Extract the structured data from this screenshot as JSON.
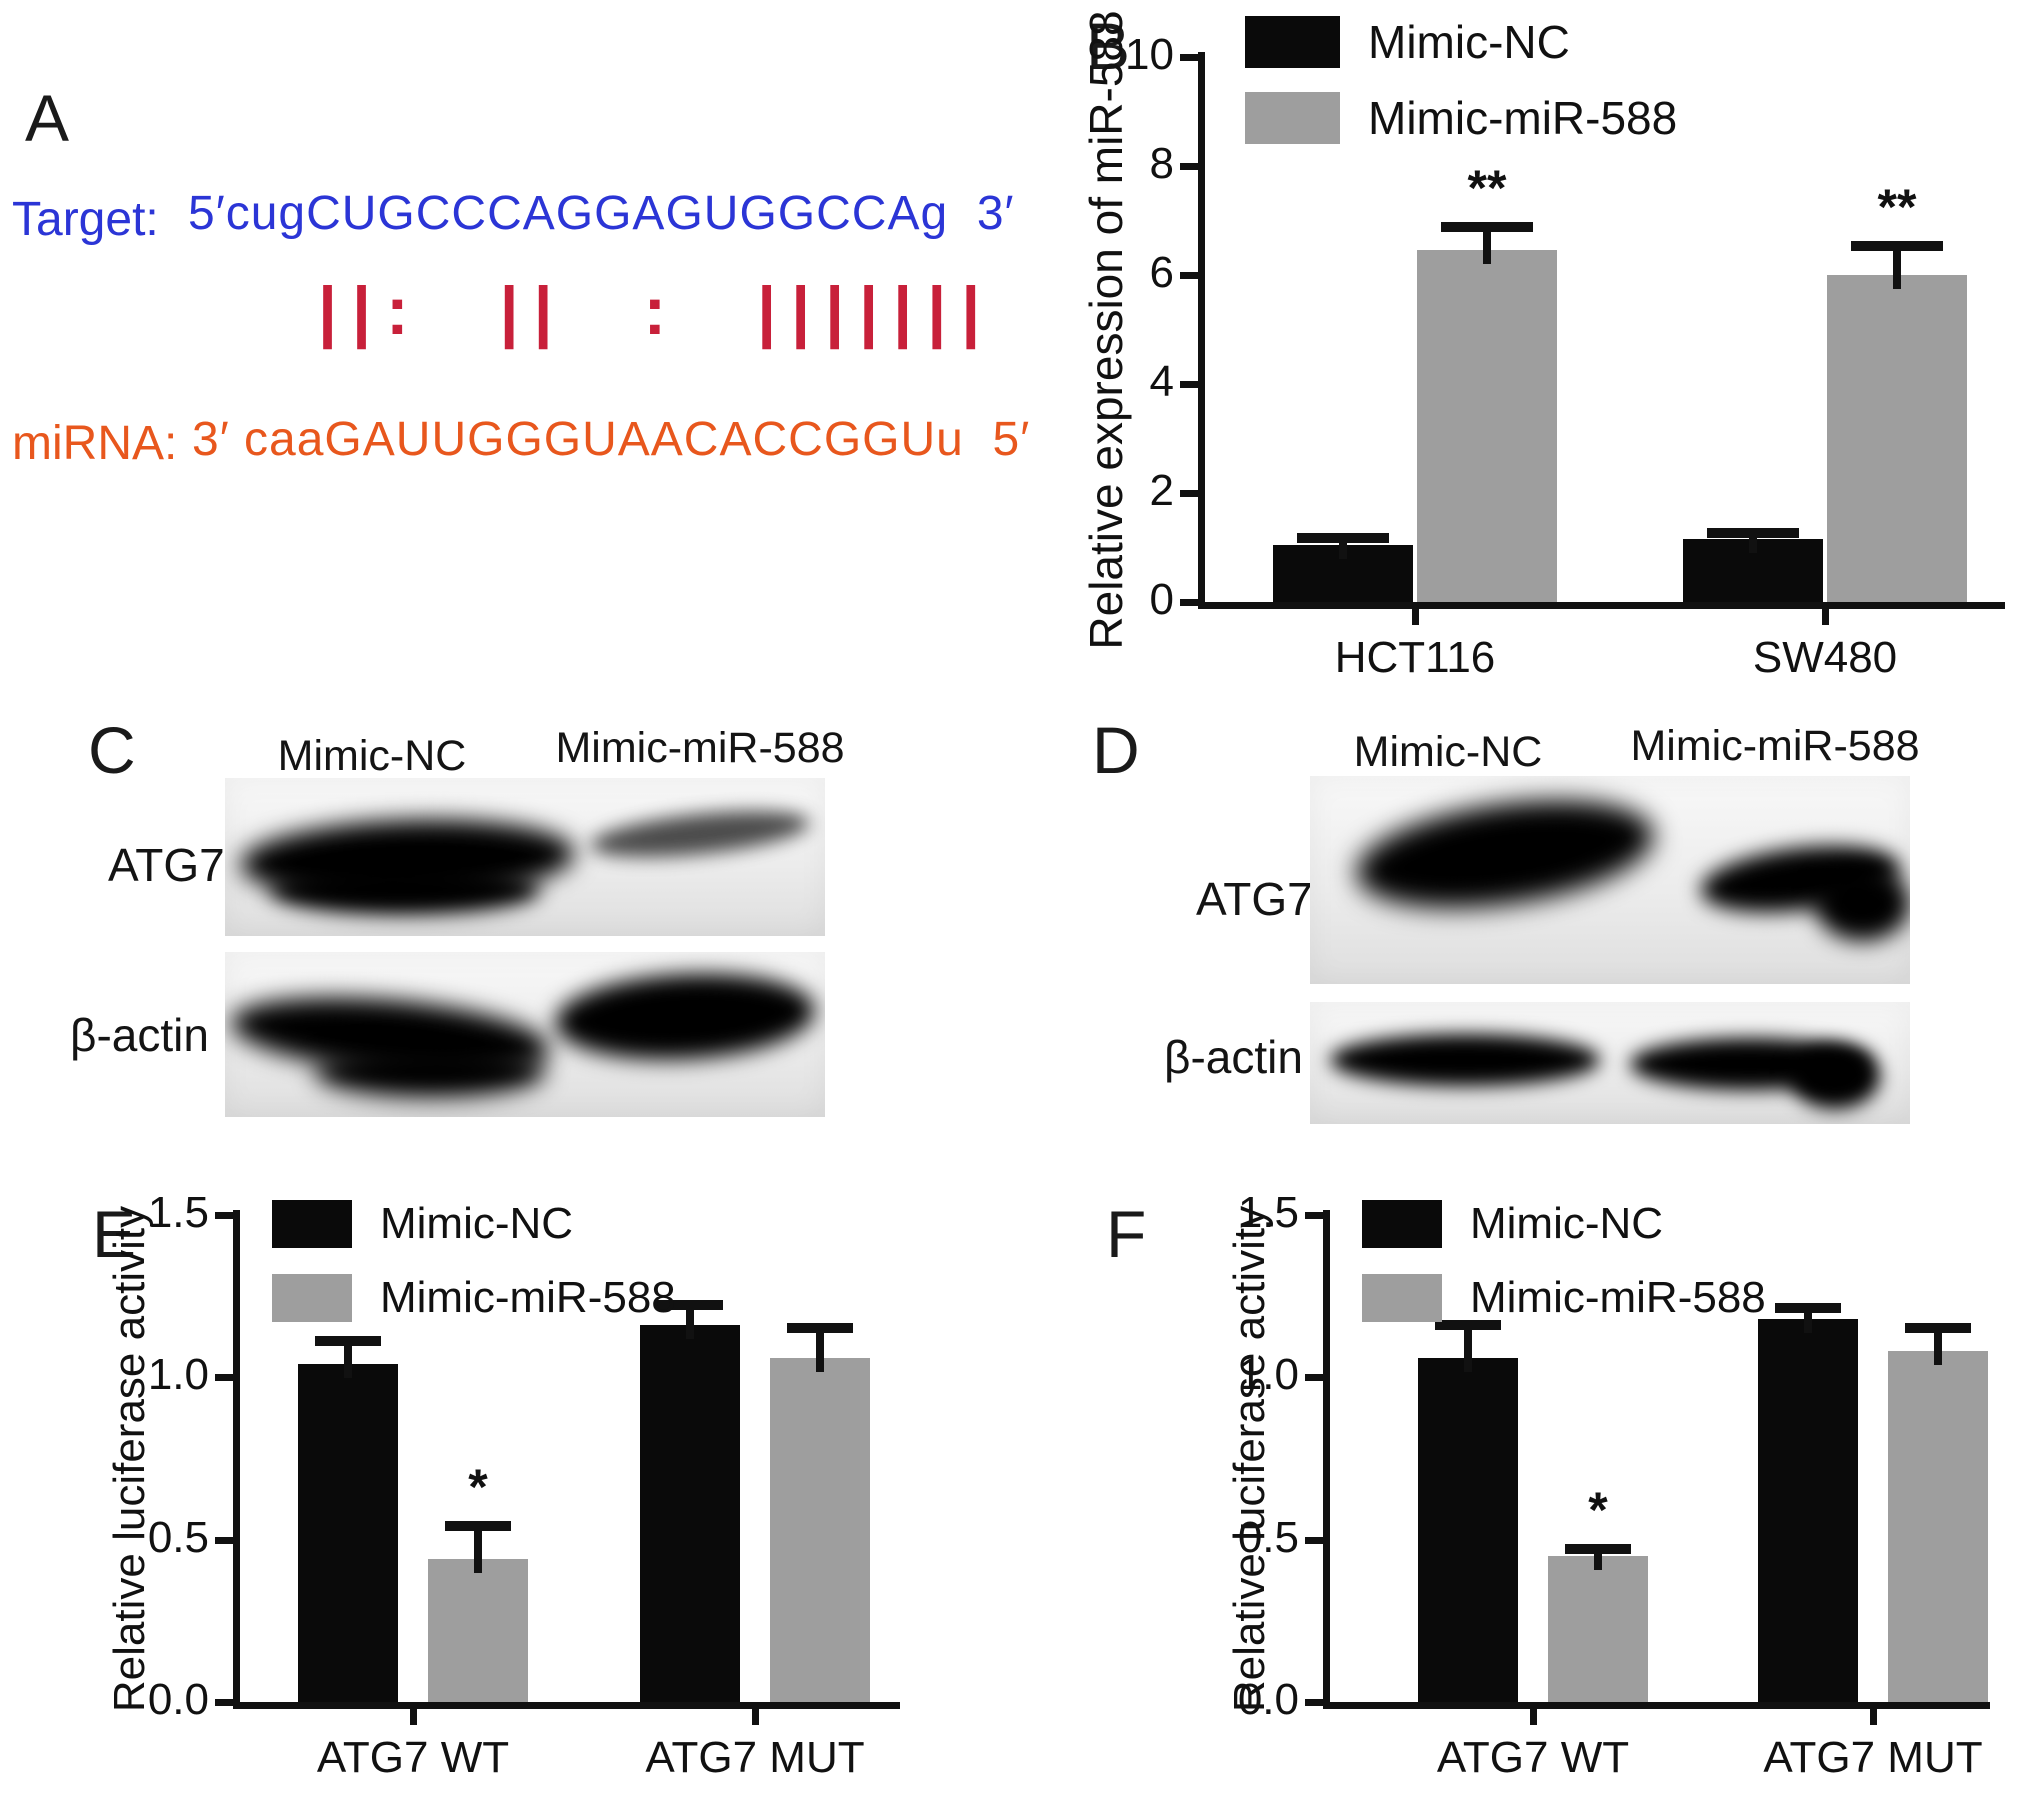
{
  "figure": {
    "panels": {
      "A": {
        "label": "A",
        "target_label": "Target:",
        "target_seq": "5′cugCUGCCCAGGAGUGGCCAg  3′",
        "alignment": "||: || : |||||||",
        "mirna_label": "miRNA:",
        "mirna_seq": "3′ caaGAUUGGGUAACACCGGUu  5′"
      },
      "C": {
        "label": "C",
        "lane_labels": [
          "Mimic-NC",
          "Mimic-miR-588"
        ],
        "row_labels": [
          "ATG7",
          "β-actin"
        ]
      },
      "D": {
        "label": "D",
        "lane_labels": [
          "Mimic-NC",
          "Mimic-miR-588"
        ],
        "row_labels": [
          "ATG7",
          "β-actin"
        ]
      }
    },
    "colors": {
      "target_blue": "#2b35d6",
      "mirna_orange": "#e8571d",
      "alignment_red": "#c8203a",
      "bar_black": "#0a0a0a",
      "bar_gray": "#9e9e9e"
    }
  },
  "chart_data": [
    {
      "panel": "B",
      "type": "bar",
      "categories": [
        "HCT116",
        "SW480"
      ],
      "series": [
        {
          "name": "Mimic-NC",
          "color": "#0a0a0a",
          "values": [
            1.05,
            1.15
          ],
          "errors": [
            0.05,
            0.05
          ],
          "sig": [
            null,
            null
          ]
        },
        {
          "name": "Mimic-miR-588",
          "color": "#9e9e9e",
          "values": [
            6.45,
            6.0
          ],
          "errors": [
            0.35,
            0.45
          ],
          "sig": [
            "**",
            "**"
          ]
        }
      ],
      "title": "",
      "xlabel": "",
      "ylabel": "Relative expression of miR-588",
      "yticks": [
        0,
        2,
        4,
        6,
        8,
        10
      ],
      "ylim": [
        0,
        10
      ],
      "grid": false,
      "legend_position": "top-left"
    },
    {
      "panel": "E",
      "type": "bar",
      "categories": [
        "ATG7 WT",
        "ATG7 MUT"
      ],
      "series": [
        {
          "name": "Mimic-NC",
          "color": "#0a0a0a",
          "values": [
            1.04,
            1.16
          ],
          "errors": [
            0.06,
            0.05
          ],
          "sig": [
            null,
            null
          ]
        },
        {
          "name": "Mimic-miR-588",
          "color": "#9e9e9e",
          "values": [
            0.44,
            1.06
          ],
          "errors": [
            0.09,
            0.08
          ],
          "sig": [
            "*",
            null
          ]
        }
      ],
      "title": "",
      "xlabel": "",
      "ylabel": "Relative luciferase activity",
      "yticks": [
        0,
        0.5,
        1,
        1.5
      ],
      "ylim": [
        0,
        1.5
      ],
      "grid": false,
      "legend_position": "top-left"
    },
    {
      "panel": "F",
      "type": "bar",
      "categories": [
        "ATG7 WT",
        "ATG7 MUT"
      ],
      "series": [
        {
          "name": "Mimic-NC",
          "color": "#0a0a0a",
          "values": [
            1.06,
            1.18
          ],
          "errors": [
            0.09,
            0.02
          ],
          "sig": [
            null,
            null
          ]
        },
        {
          "name": "Mimic-miR-588",
          "color": "#9e9e9e",
          "values": [
            0.45,
            1.08
          ],
          "errors": [
            0.01,
            0.06
          ],
          "sig": [
            "*",
            null
          ]
        }
      ],
      "title": "",
      "xlabel": "",
      "ylabel": "Relative luciferase activity",
      "yticks": [
        0,
        0.5,
        1,
        1.5
      ],
      "ylim": [
        0,
        1.5
      ],
      "grid": false,
      "legend_position": "top-left"
    }
  ]
}
